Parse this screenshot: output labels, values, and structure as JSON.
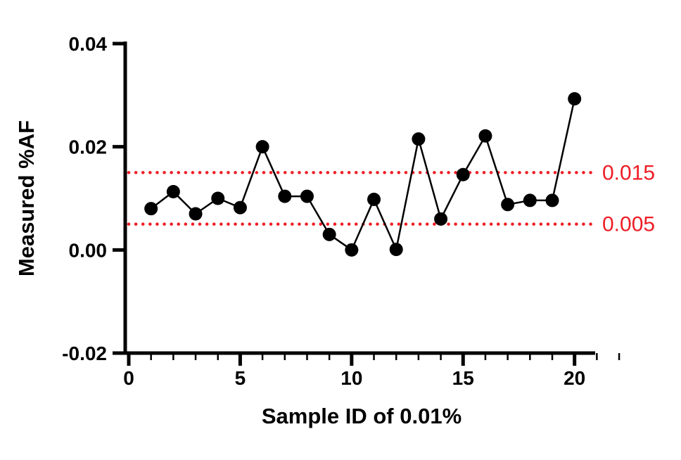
{
  "chart_data": {
    "type": "scatter",
    "title": "",
    "xlabel": "Sample ID of 0.01%",
    "ylabel": "Measured %AF",
    "x": [
      1,
      2,
      3,
      4,
      5,
      6,
      7,
      8,
      9,
      10,
      11,
      12,
      13,
      14,
      15,
      16,
      17,
      18,
      19,
      20
    ],
    "y": [
      0.008,
      0.0113,
      0.007,
      0.01,
      0.0082,
      0.02,
      0.0104,
      0.0104,
      0.003,
      0.0,
      0.0098,
      0.0001,
      0.0215,
      0.006,
      0.0146,
      0.0221,
      0.0088,
      0.0096,
      0.0096,
      0.0293
    ],
    "xlim": [
      0,
      22
    ],
    "ylim": [
      -0.02,
      0.04
    ],
    "x_major_ticks": [
      0,
      5,
      10,
      15,
      20
    ],
    "x_major_tick_labels": [
      "0",
      "5",
      "10",
      "15",
      "20"
    ],
    "x_minor_tick_step": 1,
    "y_ticks": [
      -0.02,
      0.0,
      0.02,
      0.04
    ],
    "y_tick_labels": [
      "-0.02",
      "0.00",
      "0.02",
      "0.04"
    ],
    "reference_lines": [
      {
        "value": 0.015,
        "label": "0.015"
      },
      {
        "value": 0.005,
        "label": "0.005"
      }
    ],
    "grid": "off",
    "legend": "none",
    "colors": {
      "points": "#000000",
      "line": "#000000",
      "axes": "#000000",
      "reference": "#ee1d25",
      "background": "#ffffff"
    }
  }
}
